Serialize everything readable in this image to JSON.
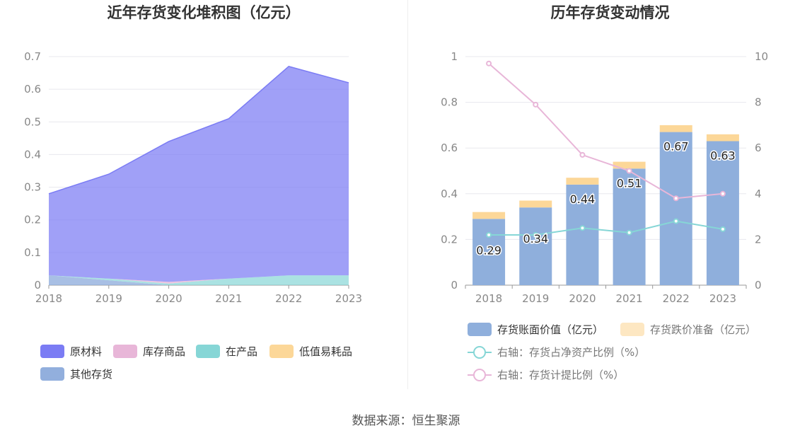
{
  "footer": {
    "source": "数据来源：恒生聚源"
  },
  "chart_data": [
    {
      "type": "area",
      "title": "近年存货变化堆积图（亿元）",
      "categories": [
        "2018",
        "2019",
        "2020",
        "2021",
        "2022",
        "2023"
      ],
      "ylim": [
        0,
        0.7
      ],
      "yticks": [
        "0",
        "0.1",
        "0.2",
        "0.3",
        "0.4",
        "0.5",
        "0.6",
        "0.7"
      ],
      "stacked": true,
      "grid": true,
      "legend_position": "bottom",
      "series": [
        {
          "name": "原材料",
          "color": "#7b7cf4",
          "values": [
            0.25,
            0.32,
            0.43,
            0.49,
            0.64,
            0.59
          ]
        },
        {
          "name": "库存商品",
          "color": "#e8b6d8",
          "values": [
            0,
            0,
            0.005,
            0,
            0,
            0
          ]
        },
        {
          "name": "在产品",
          "color": "#86d6d6",
          "values": [
            0,
            0.005,
            0.005,
            0.02,
            0.03,
            0.03
          ]
        },
        {
          "name": "低值易耗品",
          "color": "#fcd798",
          "values": [
            0,
            0,
            0,
            0,
            0,
            0
          ]
        },
        {
          "name": "其他存货",
          "color": "#92afdd",
          "values": [
            0.03,
            0.015,
            0,
            0,
            0,
            0
          ]
        }
      ]
    },
    {
      "type": "bar",
      "title": "历年存货变动情况",
      "categories": [
        "2018",
        "2019",
        "2020",
        "2021",
        "2022",
        "2023"
      ],
      "ylim": [
        0,
        1
      ],
      "yticks": [
        "0",
        "0.2",
        "0.4",
        "0.6",
        "0.8",
        "1"
      ],
      "y2lim": [
        0,
        10
      ],
      "y2ticks": [
        "0",
        "2",
        "4",
        "6",
        "8",
        "10"
      ],
      "grid": true,
      "legend_position": "bottom",
      "stacked": true,
      "series": [
        {
          "name": "存货账面价值（亿元）",
          "color": "#8fafdc",
          "values": [
            0.29,
            0.34,
            0.44,
            0.51,
            0.67,
            0.63
          ],
          "data_labels": [
            "0.29",
            "0.34",
            "0.44",
            "0.51",
            "0.67",
            "0.63"
          ]
        },
        {
          "name": "存货跌价准备（亿元）",
          "color": "#fcd798",
          "values": [
            0.03,
            0.03,
            0.03,
            0.03,
            0.03,
            0.03
          ]
        }
      ],
      "line_series": [
        {
          "name": "右轴：存货占净资产比例（%）",
          "color": "#86d6d6",
          "values": [
            2.2,
            2.2,
            2.5,
            2.3,
            2.8,
            2.45
          ]
        },
        {
          "name": "右轴：存货计提比例（%）",
          "color": "#e8b6d8",
          "values": [
            9.7,
            7.9,
            5.7,
            5.0,
            3.8,
            4.0
          ]
        }
      ]
    }
  ]
}
